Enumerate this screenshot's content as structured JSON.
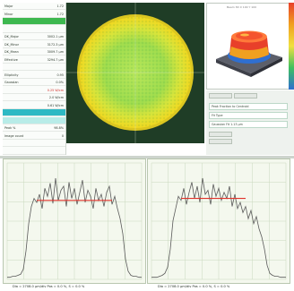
{
  "left_panel": {
    "rows": [
      {
        "label": "Major",
        "value": "1.72",
        "style": ""
      },
      {
        "label": "Minor",
        "value": "1.72",
        "style": ""
      },
      {
        "label": "",
        "value": "",
        "style": "hl-green"
      },
      {
        "label": "",
        "value": "",
        "style": ""
      },
      {
        "label": "DK_Major",
        "value": "3002.1 µm",
        "style": ""
      },
      {
        "label": "DK_Minor",
        "value": "3172.3 µm",
        "style": ""
      },
      {
        "label": "DK_Mean",
        "value": "3009.7 µm",
        "style": ""
      },
      {
        "label": "Effective",
        "value": "3294.7 µm",
        "style": ""
      },
      {
        "label": "",
        "value": "",
        "style": ""
      },
      {
        "label": "Ellipticity",
        "value": "0.95",
        "style": ""
      },
      {
        "label": "Gaussian",
        "value": "0.0%",
        "style": ""
      },
      {
        "label": "",
        "value": "0.25 W/cm",
        "style": "red"
      },
      {
        "label": "",
        "value": "2.0 W/cm",
        "style": ""
      },
      {
        "label": "",
        "value": "0.61 W/cm",
        "style": ""
      },
      {
        "label": "",
        "value": "",
        "style": "hl-cyan"
      },
      {
        "label": "",
        "value": "",
        "style": "hl-lightcyan"
      },
      {
        "label": "Peak %",
        "value": "98.8%",
        "style": ""
      },
      {
        "label": "Image count",
        "value": "0",
        "style": ""
      },
      {
        "label": "",
        "value": "",
        "style": ""
      },
      {
        "label": "",
        "value": "",
        "style": ""
      }
    ]
  },
  "view3d": {
    "title": "Beam 3D X 100 Y 100"
  },
  "info_panel": {
    "fields": [
      "Peak Fraction to Centroid",
      "Fit Type",
      "Gaussian Fit 1.13 µm"
    ]
  },
  "charts": [
    {
      "caption": "Dia = 2708.0 µm/div     Pos = 0.0 %, S = 0.0 %",
      "chart_data": {
        "type": "line",
        "x": [
          0,
          2,
          4,
          6,
          8,
          10,
          12,
          14,
          16,
          18,
          20,
          22,
          24,
          26,
          28,
          30,
          32,
          34,
          36,
          38,
          40,
          42,
          44,
          46,
          48,
          50,
          52,
          54,
          56,
          58,
          60,
          62,
          64,
          66,
          68,
          70,
          72,
          74,
          76,
          78,
          80,
          82,
          84,
          86,
          88,
          90,
          92,
          94,
          96,
          98,
          100
        ],
        "values": [
          0.02,
          0.02,
          0.03,
          0.03,
          0.04,
          0.05,
          0.1,
          0.28,
          0.55,
          0.72,
          0.8,
          0.76,
          0.84,
          0.7,
          0.9,
          0.82,
          0.95,
          0.75,
          1.0,
          0.78,
          0.88,
          0.92,
          0.72,
          0.96,
          0.8,
          0.9,
          0.74,
          0.86,
          0.98,
          0.76,
          0.88,
          0.82,
          0.7,
          0.9,
          0.78,
          0.84,
          0.72,
          0.86,
          0.92,
          0.74,
          0.82,
          0.7,
          0.6,
          0.45,
          0.2,
          0.08,
          0.04,
          0.03,
          0.03,
          0.02,
          0.02
        ],
        "fit_y": 0.78,
        "fit_x": [
          22,
          78
        ],
        "ylim": [
          0,
          1.15
        ]
      }
    },
    {
      "caption": "Dia = 2708.0 µm/div     Pos = 0.0 %, S = 0.0 %",
      "chart_data": {
        "type": "line",
        "x": [
          0,
          2,
          4,
          6,
          8,
          10,
          12,
          14,
          16,
          18,
          20,
          22,
          24,
          26,
          28,
          30,
          32,
          34,
          36,
          38,
          40,
          42,
          44,
          46,
          48,
          50,
          52,
          54,
          56,
          58,
          60,
          62,
          64,
          66,
          68,
          70,
          72,
          74,
          76,
          78,
          80,
          82,
          84,
          86,
          88,
          90,
          92,
          94,
          96,
          98,
          100
        ],
        "values": [
          0.02,
          0.02,
          0.02,
          0.03,
          0.04,
          0.06,
          0.12,
          0.3,
          0.58,
          0.7,
          0.82,
          0.78,
          0.9,
          0.74,
          0.86,
          0.96,
          0.8,
          0.92,
          0.76,
          1.0,
          0.84,
          0.88,
          0.74,
          0.94,
          0.82,
          0.9,
          0.78,
          0.86,
          0.8,
          0.92,
          0.72,
          0.84,
          0.7,
          0.76,
          0.66,
          0.72,
          0.6,
          0.68,
          0.55,
          0.62,
          0.5,
          0.42,
          0.3,
          0.14,
          0.06,
          0.04,
          0.03,
          0.03,
          0.02,
          0.02,
          0.02
        ],
        "fit_y": 0.8,
        "fit_x": [
          22,
          70
        ],
        "ylim": [
          0,
          1.15
        ]
      }
    }
  ],
  "colors": {
    "beam_outer": "#f5dc28",
    "beam_inner": "#8ed64a",
    "beam_bg": "#1f3d26",
    "trace": "#5a5a5a",
    "fit_line": "#e0322a",
    "grid": "#c9d8bd"
  }
}
